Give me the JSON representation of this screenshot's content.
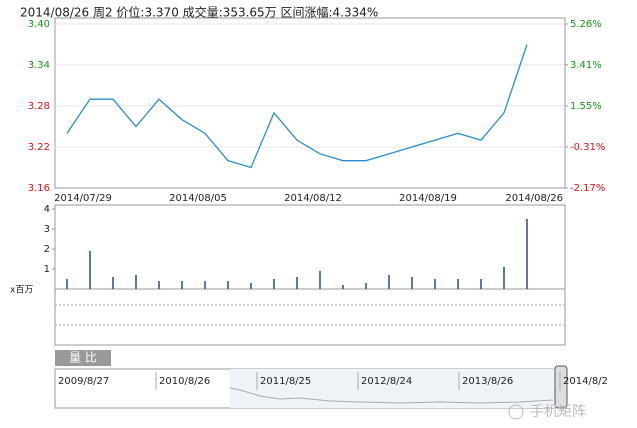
{
  "chart_data": [
    {
      "type": "line",
      "title": "2014/08/26 周2 价位:3.370 成交量:353.65万 区间涨幅:4.334%",
      "categories": [
        "2014/07/29",
        null,
        null,
        null,
        null,
        "2014/08/05",
        null,
        null,
        null,
        null,
        "2014/08/12",
        null,
        null,
        null,
        null,
        "2014/08/19",
        null,
        null,
        null,
        null,
        "2014/08/26"
      ],
      "values": [
        3.24,
        3.29,
        3.29,
        3.25,
        3.29,
        3.26,
        3.24,
        3.2,
        3.19,
        3.27,
        3.23,
        3.21,
        3.2,
        3.2,
        3.21,
        3.22,
        3.23,
        3.24,
        3.23,
        3.27,
        3.37
      ],
      "color": "#2a8fc9",
      "ylim": [
        3.16,
        3.4
      ],
      "yticks": [
        3.16,
        3.22,
        3.28,
        3.34,
        {
          "value": 3.4,
          "label": "3.40"
        }
      ],
      "y2lim": [
        -2.17,
        5.26
      ],
      "y2ticks": [
        {
          "value": -2.17,
          "label": "-2.17%"
        },
        {
          "value": -0.31,
          "label": "-0.31%"
        },
        {
          "value": 1.55,
          "label": "1.55%"
        },
        {
          "value": 3.41,
          "label": "3.41%"
        },
        {
          "value": 5.26,
          "label": "5.26%"
        }
      ],
      "up_color": "#119911",
      "down_color": "#e01010",
      "grid": true
    },
    {
      "type": "bar",
      "unit_label": "x百万",
      "values": [
        0.5,
        1.9,
        0.6,
        0.7,
        0.4,
        0.4,
        0.4,
        0.4,
        0.3,
        0.5,
        0.6,
        0.9,
        0.2,
        0.3,
        0.7,
        0.6,
        0.5,
        0.5,
        0.5,
        1.1,
        3.5
      ],
      "color": "#1f4f8f",
      "ylim": [
        0,
        4
      ],
      "yticks": [
        1,
        2,
        3,
        4
      ]
    }
  ],
  "navigator": {
    "tab": "量 比",
    "dates": [
      "2009/8/27",
      "2010/8/26",
      "2011/8/25",
      "2012/8/24",
      "2013/8/26",
      "2014/8/2"
    ]
  },
  "watermark": "手机矩阵"
}
